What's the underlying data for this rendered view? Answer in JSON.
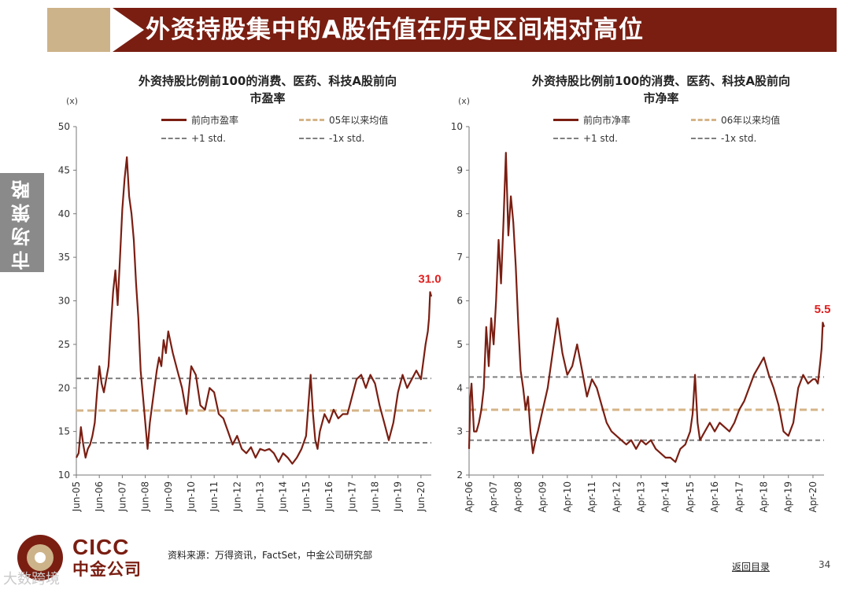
{
  "header": {
    "title": "外资持股集中的A股估值在历史区间相对高位"
  },
  "side_tab": {
    "label": "市场策略"
  },
  "chart_data": [
    {
      "type": "line",
      "title": "外资持股比例前100的消费、医药、科技A股前向市盈率",
      "title_line1": "外资持股比例前100的消费、医药、科技A股前向",
      "title_line2": "市盈率",
      "unit": "(x)",
      "ylim": [
        10,
        50
      ],
      "yticks": [
        "10",
        "15",
        "20",
        "25",
        "30",
        "35",
        "40",
        "45",
        "50"
      ],
      "xticks": [
        "Jun-05",
        "Jun-06",
        "Jun-07",
        "Jun-08",
        "Jun-09",
        "Jun-10",
        "Jun-11",
        "Jun-12",
        "Jun-13",
        "Jun-14",
        "Jun-15",
        "Jun-16",
        "Jun-17",
        "Jun-18",
        "Jun-19",
        "Jun-20"
      ],
      "xlim": [
        2005.0,
        2020.45
      ],
      "legend": {
        "main": "前向市盈率",
        "mean": "05年以来均值",
        "plus": "+1 std.",
        "minus": "-1x std."
      },
      "mean": 17.4,
      "plus_std": 21.1,
      "minus_std": 13.7,
      "annotation": "31.0",
      "series": [
        {
          "name": "前向市盈率",
          "x": [
            2005.0,
            2005.1,
            2005.2,
            2005.3,
            2005.4,
            2005.5,
            2005.6,
            2005.7,
            2005.8,
            2005.9,
            2006.0,
            2006.1,
            2006.2,
            2006.3,
            2006.4,
            2006.5,
            2006.6,
            2006.7,
            2006.8,
            2006.9,
            2007.0,
            2007.1,
            2007.2,
            2007.3,
            2007.4,
            2007.5,
            2007.6,
            2007.7,
            2007.8,
            2007.9,
            2008.0,
            2008.1,
            2008.2,
            2008.3,
            2008.4,
            2008.5,
            2008.6,
            2008.7,
            2008.8,
            2008.9,
            2009.0,
            2009.2,
            2009.4,
            2009.6,
            2009.8,
            2010.0,
            2010.2,
            2010.4,
            2010.6,
            2010.8,
            2011.0,
            2011.2,
            2011.4,
            2011.6,
            2011.8,
            2012.0,
            2012.2,
            2012.4,
            2012.6,
            2012.8,
            2013.0,
            2013.2,
            2013.4,
            2013.6,
            2013.8,
            2014.0,
            2014.2,
            2014.4,
            2014.6,
            2014.8,
            2015.0,
            2015.1,
            2015.2,
            2015.3,
            2015.4,
            2015.5,
            2015.6,
            2015.8,
            2016.0,
            2016.2,
            2016.4,
            2016.6,
            2016.8,
            2017.0,
            2017.2,
            2017.4,
            2017.6,
            2017.8,
            2018.0,
            2018.2,
            2018.4,
            2018.6,
            2018.8,
            2019.0,
            2019.2,
            2019.4,
            2019.6,
            2019.8,
            2020.0,
            2020.1,
            2020.2,
            2020.3,
            2020.35,
            2020.4,
            2020.45
          ],
          "values": [
            12.0,
            12.5,
            15.5,
            13.5,
            12.0,
            13.0,
            13.5,
            14.5,
            16.0,
            19.5,
            22.5,
            20.5,
            19.5,
            21.0,
            22.5,
            27.0,
            31.0,
            33.5,
            29.5,
            35.0,
            40.5,
            44.0,
            46.5,
            42.0,
            40.0,
            37.0,
            32.0,
            28.0,
            22.0,
            19.0,
            16.0,
            13.0,
            16.0,
            18.0,
            20.0,
            22.0,
            23.5,
            22.5,
            25.5,
            24.0,
            26.5,
            24.0,
            22.0,
            20.0,
            17.0,
            22.5,
            21.5,
            18.0,
            17.5,
            20.0,
            19.5,
            17.0,
            16.5,
            15.0,
            13.5,
            14.5,
            13.0,
            12.5,
            13.2,
            12.0,
            13.0,
            12.8,
            13.0,
            12.5,
            11.5,
            12.5,
            12.0,
            11.3,
            12.0,
            13.0,
            14.5,
            18.0,
            21.5,
            17.0,
            14.0,
            13.0,
            15.0,
            17.0,
            16.0,
            17.5,
            16.5,
            17.0,
            17.0,
            19.0,
            21.0,
            21.5,
            20.0,
            21.5,
            20.5,
            18.0,
            16.0,
            14.0,
            16.0,
            19.5,
            21.5,
            20.0,
            21.0,
            22.0,
            21.0,
            23.0,
            25.0,
            26.5,
            28.0,
            31.0,
            30.5
          ]
        }
      ]
    },
    {
      "type": "line",
      "title": "外资持股比例前100的消费、医药、科技A股前向市净率",
      "title_line1": "外资持股比例前100的消费、医药、科技A股前向",
      "title_line2": "市净率",
      "unit": "(x)",
      "ylim": [
        2,
        10
      ],
      "yticks": [
        "2",
        "3",
        "4",
        "5",
        "6",
        "7",
        "8",
        "9",
        "10"
      ],
      "xticks": [
        "Apr-06",
        "Apr-07",
        "Apr-08",
        "Apr-09",
        "Apr-10",
        "Apr-11",
        "Apr-12",
        "Apr-13",
        "Apr-14",
        "Apr-15",
        "Apr-16",
        "Apr-17",
        "Apr-18",
        "Apr-19",
        "Apr-20"
      ],
      "xlim": [
        2006.0,
        2020.45
      ],
      "legend": {
        "main": "前向市净率",
        "mean": "06年以来均值",
        "plus": "+1 std.",
        "minus": "-1x std."
      },
      "mean": 3.5,
      "plus_std": 4.25,
      "minus_std": 2.8,
      "annotation": "5.5",
      "series": [
        {
          "name": "前向市净率",
          "x": [
            2006.0,
            2006.05,
            2006.1,
            2006.2,
            2006.3,
            2006.4,
            2006.5,
            2006.6,
            2006.7,
            2006.8,
            2006.9,
            2007.0,
            2007.1,
            2007.2,
            2007.3,
            2007.4,
            2007.5,
            2007.6,
            2007.7,
            2007.8,
            2007.9,
            2008.0,
            2008.1,
            2008.2,
            2008.3,
            2008.4,
            2008.5,
            2008.6,
            2008.7,
            2008.8,
            2009.0,
            2009.2,
            2009.4,
            2009.6,
            2009.8,
            2010.0,
            2010.2,
            2010.4,
            2010.6,
            2010.8,
            2011.0,
            2011.2,
            2011.4,
            2011.6,
            2011.8,
            2012.0,
            2012.2,
            2012.4,
            2012.6,
            2012.8,
            2013.0,
            2013.2,
            2013.4,
            2013.6,
            2013.8,
            2014.0,
            2014.2,
            2014.4,
            2014.6,
            2014.8,
            2015.0,
            2015.1,
            2015.2,
            2015.3,
            2015.4,
            2015.5,
            2015.6,
            2015.8,
            2016.0,
            2016.2,
            2016.4,
            2016.6,
            2016.8,
            2017.0,
            2017.2,
            2017.4,
            2017.6,
            2017.8,
            2018.0,
            2018.2,
            2018.4,
            2018.6,
            2018.8,
            2019.0,
            2019.2,
            2019.4,
            2019.6,
            2019.8,
            2020.0,
            2020.1,
            2020.2,
            2020.3,
            2020.35,
            2020.4,
            2020.45
          ],
          "values": [
            2.6,
            3.8,
            4.1,
            3.0,
            3.0,
            3.2,
            3.5,
            4.0,
            5.4,
            4.5,
            5.6,
            5.0,
            6.0,
            7.4,
            6.4,
            7.8,
            9.4,
            7.5,
            8.4,
            7.8,
            6.8,
            5.5,
            4.4,
            4.0,
            3.5,
            3.8,
            3.0,
            2.5,
            2.8,
            3.0,
            3.5,
            4.0,
            4.8,
            5.6,
            4.8,
            4.3,
            4.5,
            5.0,
            4.4,
            3.8,
            4.2,
            4.0,
            3.6,
            3.2,
            3.0,
            2.9,
            2.8,
            2.7,
            2.8,
            2.6,
            2.8,
            2.7,
            2.8,
            2.6,
            2.5,
            2.4,
            2.4,
            2.3,
            2.6,
            2.7,
            3.0,
            3.4,
            4.3,
            3.2,
            2.8,
            2.9,
            3.0,
            3.2,
            3.0,
            3.2,
            3.1,
            3.0,
            3.2,
            3.5,
            3.7,
            4.0,
            4.3,
            4.5,
            4.7,
            4.3,
            4.0,
            3.6,
            3.0,
            2.9,
            3.2,
            4.0,
            4.3,
            4.1,
            4.2,
            4.2,
            4.1,
            4.6,
            4.9,
            5.5,
            5.4
          ]
        }
      ]
    }
  ],
  "footer": {
    "source": "资料来源：万得资讯，FactSet，中金公司研究部",
    "back_link": "返回目录",
    "page_number": "34"
  },
  "logo": {
    "en": "CICC",
    "cn": "中金公司"
  },
  "watermark": "大数跨境",
  "colors": {
    "brand": "#7a1e12",
    "tan": "#cdb38a",
    "mean_line": "#d5b488",
    "std_line": "#808080",
    "annotation": "#e02020"
  }
}
